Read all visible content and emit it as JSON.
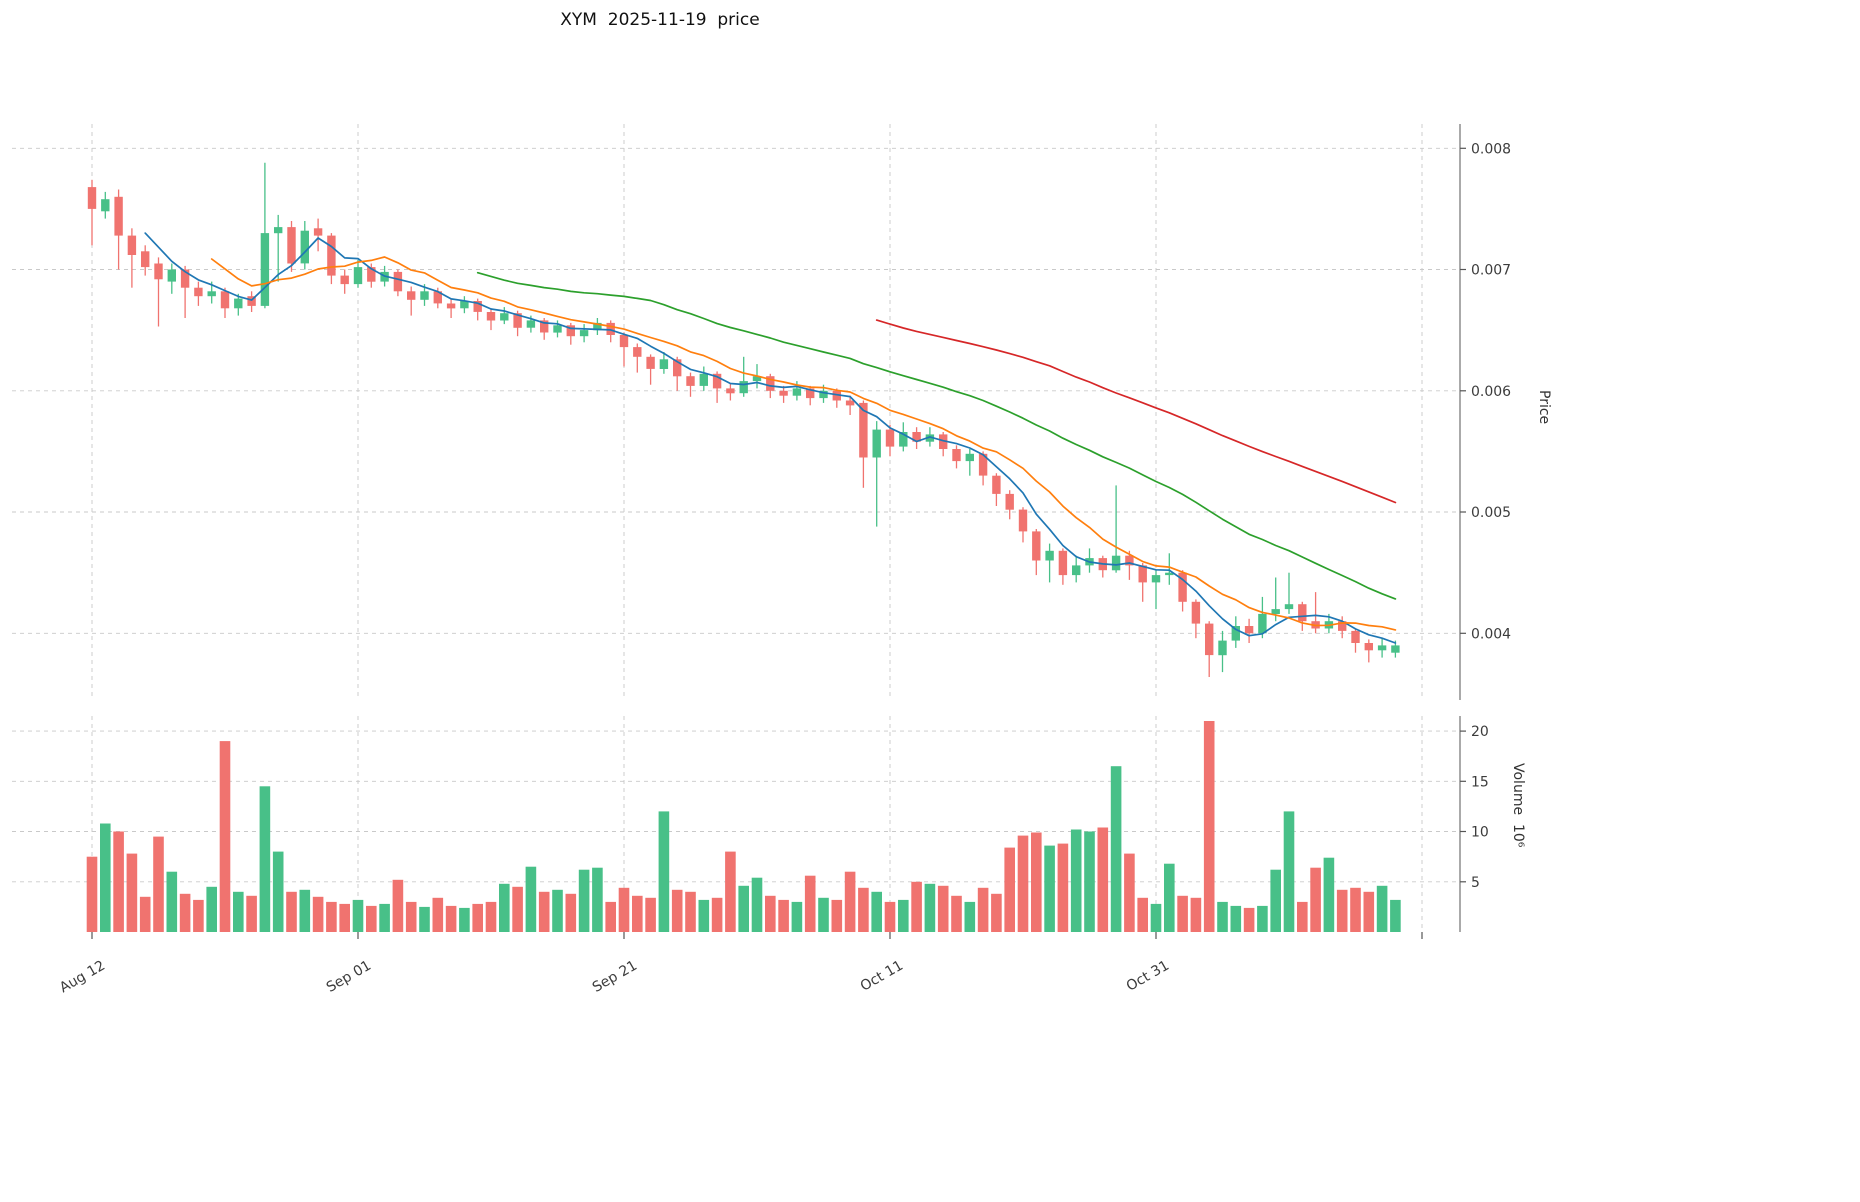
{
  "chart_data": {
    "type": "candlestick",
    "title": "XYM  2025-11-19  price",
    "symbol": "XYM",
    "as_of_date": "2025-11-19",
    "start_date": "2025-08-12",
    "grid": true,
    "legend": "none",
    "up_color": "#48c088",
    "down_color": "#f0736f",
    "price_axis": {
      "label": "Price",
      "side": "right",
      "range": [
        0.00345,
        0.0082
      ],
      "ticks": [
        {
          "v": 0.008,
          "label": "0.008"
        },
        {
          "v": 0.007,
          "label": "0.007"
        },
        {
          "v": 0.006,
          "label": "0.006"
        },
        {
          "v": 0.005,
          "label": "0.005"
        },
        {
          "v": 0.004,
          "label": "0.004"
        }
      ]
    },
    "volume_axis": {
      "label": "Volume  10⁶",
      "side": "right",
      "unit": "millions",
      "range": [
        0,
        21.5
      ],
      "ticks": [
        {
          "v": 20,
          "label": "20"
        },
        {
          "v": 15,
          "label": "15"
        },
        {
          "v": 10,
          "label": "10"
        },
        {
          "v": 5,
          "label": "5"
        }
      ]
    },
    "x_ticks": [
      {
        "day": 0,
        "label": "Aug 12"
      },
      {
        "day": 20,
        "label": "Sep 01"
      },
      {
        "day": 40,
        "label": "Sep 21"
      },
      {
        "day": 60,
        "label": "Oct 11"
      },
      {
        "day": 80,
        "label": "Oct 31"
      },
      {
        "day": 100,
        "label": ""
      }
    ],
    "overlays": [
      {
        "name": "SMA 5",
        "window": 5,
        "color": "#1f77b4"
      },
      {
        "name": "SMA 10",
        "window": 10,
        "color": "#ff7f0e"
      },
      {
        "name": "SMA 30",
        "window": 30,
        "color": "#2ca02c"
      },
      {
        "name": "SMA 60",
        "window": 60,
        "color": "#d62728"
      }
    ],
    "columns": [
      "open",
      "high",
      "low",
      "close",
      "volume_millions"
    ],
    "candles": [
      [
        0.00768,
        0.00774,
        0.0072,
        0.0075,
        7.5
      ],
      [
        0.00748,
        0.00764,
        0.00742,
        0.00758,
        10.8
      ],
      [
        0.0076,
        0.00766,
        0.007,
        0.00728,
        10.0
      ],
      [
        0.00728,
        0.00734,
        0.00685,
        0.00712,
        7.8
      ],
      [
        0.00715,
        0.0072,
        0.00695,
        0.00702,
        3.5
      ],
      [
        0.00705,
        0.0071,
        0.00653,
        0.00692,
        9.5
      ],
      [
        0.0069,
        0.00705,
        0.0068,
        0.007,
        6.0
      ],
      [
        0.007,
        0.00703,
        0.0066,
        0.00685,
        3.8
      ],
      [
        0.00685,
        0.0069,
        0.0067,
        0.00678,
        3.2
      ],
      [
        0.00678,
        0.0069,
        0.00672,
        0.00682,
        4.5
      ],
      [
        0.00682,
        0.00685,
        0.0066,
        0.00668,
        19.0
      ],
      [
        0.00668,
        0.0068,
        0.00662,
        0.00676,
        4.0
      ],
      [
        0.00678,
        0.00682,
        0.00665,
        0.0067,
        3.6
      ],
      [
        0.0067,
        0.00788,
        0.00668,
        0.0073,
        14.5
      ],
      [
        0.0073,
        0.00745,
        0.0069,
        0.00735,
        8.0
      ],
      [
        0.00735,
        0.0074,
        0.00698,
        0.00705,
        4.0
      ],
      [
        0.00705,
        0.0074,
        0.007,
        0.00732,
        4.2
      ],
      [
        0.00734,
        0.00742,
        0.00715,
        0.00728,
        3.5
      ],
      [
        0.00728,
        0.0073,
        0.00688,
        0.00695,
        3.0
      ],
      [
        0.00695,
        0.007,
        0.0068,
        0.00688,
        2.8
      ],
      [
        0.00688,
        0.00708,
        0.00685,
        0.00702,
        3.2
      ],
      [
        0.00702,
        0.00705,
        0.00685,
        0.0069,
        2.6
      ],
      [
        0.0069,
        0.00703,
        0.00686,
        0.00698,
        2.8
      ],
      [
        0.00698,
        0.007,
        0.00678,
        0.00682,
        5.2
      ],
      [
        0.00682,
        0.00686,
        0.00662,
        0.00675,
        3.0
      ],
      [
        0.00675,
        0.00688,
        0.0067,
        0.00682,
        2.5
      ],
      [
        0.00682,
        0.00685,
        0.00668,
        0.00672,
        3.4
      ],
      [
        0.00672,
        0.00676,
        0.0066,
        0.00668,
        2.6
      ],
      [
        0.00668,
        0.00678,
        0.00664,
        0.00674,
        2.4
      ],
      [
        0.00674,
        0.00676,
        0.00658,
        0.00665,
        2.8
      ],
      [
        0.00665,
        0.00668,
        0.0065,
        0.00658,
        3.0
      ],
      [
        0.00658,
        0.00669,
        0.00655,
        0.00664,
        4.8
      ],
      [
        0.00664,
        0.00666,
        0.00645,
        0.00652,
        4.5
      ],
      [
        0.00652,
        0.00662,
        0.00648,
        0.00658,
        6.5
      ],
      [
        0.00658,
        0.0066,
        0.00642,
        0.00648,
        4.0
      ],
      [
        0.00648,
        0.00658,
        0.00644,
        0.00654,
        4.2
      ],
      [
        0.00654,
        0.00656,
        0.00638,
        0.00645,
        3.8
      ],
      [
        0.00645,
        0.00655,
        0.0064,
        0.0065,
        6.2
      ],
      [
        0.0065,
        0.0066,
        0.00646,
        0.00656,
        6.4
      ],
      [
        0.00656,
        0.00658,
        0.0064,
        0.00646,
        3.0
      ],
      [
        0.00646,
        0.00648,
        0.0062,
        0.00636,
        4.4
      ],
      [
        0.00636,
        0.00639,
        0.00615,
        0.00628,
        3.6
      ],
      [
        0.00628,
        0.0063,
        0.00605,
        0.00618,
        3.4
      ],
      [
        0.00618,
        0.00632,
        0.00614,
        0.00626,
        12.0
      ],
      [
        0.00626,
        0.00628,
        0.006,
        0.00612,
        4.2
      ],
      [
        0.00612,
        0.00615,
        0.00595,
        0.00604,
        4.0
      ],
      [
        0.00604,
        0.0062,
        0.006,
        0.00614,
        3.2
      ],
      [
        0.00614,
        0.00616,
        0.0059,
        0.00602,
        3.4
      ],
      [
        0.00602,
        0.00606,
        0.00592,
        0.00598,
        8.0
      ],
      [
        0.00598,
        0.00628,
        0.00595,
        0.00608,
        4.6
      ],
      [
        0.00608,
        0.00622,
        0.00602,
        0.00612,
        5.4
      ],
      [
        0.00612,
        0.00614,
        0.00594,
        0.006,
        3.6
      ],
      [
        0.006,
        0.00604,
        0.0059,
        0.00596,
        3.2
      ],
      [
        0.00596,
        0.00608,
        0.00592,
        0.00602,
        3.0
      ],
      [
        0.00602,
        0.00604,
        0.00588,
        0.00594,
        5.6
      ],
      [
        0.00594,
        0.00605,
        0.0059,
        0.006,
        3.4
      ],
      [
        0.006,
        0.00602,
        0.00586,
        0.00592,
        3.2
      ],
      [
        0.00592,
        0.00596,
        0.0058,
        0.00588,
        6.0
      ],
      [
        0.0059,
        0.00592,
        0.0052,
        0.00545,
        4.4
      ],
      [
        0.00545,
        0.00575,
        0.00488,
        0.00568,
        4.0
      ],
      [
        0.00568,
        0.00572,
        0.00546,
        0.00554,
        3.0
      ],
      [
        0.00554,
        0.00574,
        0.0055,
        0.00566,
        3.2
      ],
      [
        0.00566,
        0.0057,
        0.00552,
        0.00558,
        5.0
      ],
      [
        0.00558,
        0.0057,
        0.00554,
        0.00564,
        4.8
      ],
      [
        0.00564,
        0.00566,
        0.00546,
        0.00552,
        4.6
      ],
      [
        0.00552,
        0.00555,
        0.00536,
        0.00542,
        3.6
      ],
      [
        0.00542,
        0.00552,
        0.0053,
        0.00548,
        3.0
      ],
      [
        0.00548,
        0.0055,
        0.00522,
        0.0053,
        4.4
      ],
      [
        0.0053,
        0.00532,
        0.00505,
        0.00515,
        3.8
      ],
      [
        0.00515,
        0.00518,
        0.00494,
        0.00502,
        8.4
      ],
      [
        0.00502,
        0.00504,
        0.00475,
        0.00484,
        9.6
      ],
      [
        0.00484,
        0.00486,
        0.00448,
        0.0046,
        9.9
      ],
      [
        0.0046,
        0.00474,
        0.00442,
        0.00468,
        8.6
      ],
      [
        0.00468,
        0.0047,
        0.0044,
        0.00448,
        8.8
      ],
      [
        0.00448,
        0.00464,
        0.00442,
        0.00456,
        10.2
      ],
      [
        0.00456,
        0.0047,
        0.0045,
        0.00462,
        10.0
      ],
      [
        0.00462,
        0.00464,
        0.00446,
        0.00452,
        10.4
      ],
      [
        0.00452,
        0.00522,
        0.0045,
        0.00464,
        16.5
      ],
      [
        0.00464,
        0.00468,
        0.00444,
        0.00456,
        7.8
      ],
      [
        0.00456,
        0.00458,
        0.00426,
        0.00442,
        3.4
      ],
      [
        0.00442,
        0.00452,
        0.0042,
        0.00448,
        2.8
      ],
      [
        0.00448,
        0.00466,
        0.0044,
        0.0045,
        6.8
      ],
      [
        0.0045,
        0.00452,
        0.00418,
        0.00426,
        3.6
      ],
      [
        0.00426,
        0.00428,
        0.00396,
        0.00408,
        3.4
      ],
      [
        0.00408,
        0.0041,
        0.00364,
        0.00382,
        21.0
      ],
      [
        0.00382,
        0.00402,
        0.00368,
        0.00394,
        3.0
      ],
      [
        0.00394,
        0.00414,
        0.00388,
        0.00406,
        2.6
      ],
      [
        0.00406,
        0.00412,
        0.00392,
        0.004,
        2.4
      ],
      [
        0.004,
        0.0043,
        0.00396,
        0.00416,
        2.6
      ],
      [
        0.00416,
        0.00446,
        0.0041,
        0.0042,
        6.2
      ],
      [
        0.0042,
        0.0045,
        0.00416,
        0.00424,
        12.0
      ],
      [
        0.00424,
        0.00426,
        0.00402,
        0.0041,
        3.0
      ],
      [
        0.0041,
        0.00434,
        0.004,
        0.00404,
        6.4
      ],
      [
        0.00404,
        0.00416,
        0.004,
        0.0041,
        7.4
      ],
      [
        0.0041,
        0.00414,
        0.00396,
        0.00402,
        4.2
      ],
      [
        0.00402,
        0.00404,
        0.00384,
        0.00392,
        4.4
      ],
      [
        0.00392,
        0.00395,
        0.00376,
        0.00386,
        4.0
      ],
      [
        0.00386,
        0.00396,
        0.0038,
        0.0039,
        4.6
      ],
      [
        0.00384,
        0.00394,
        0.0038,
        0.0039,
        3.2
      ]
    ]
  }
}
